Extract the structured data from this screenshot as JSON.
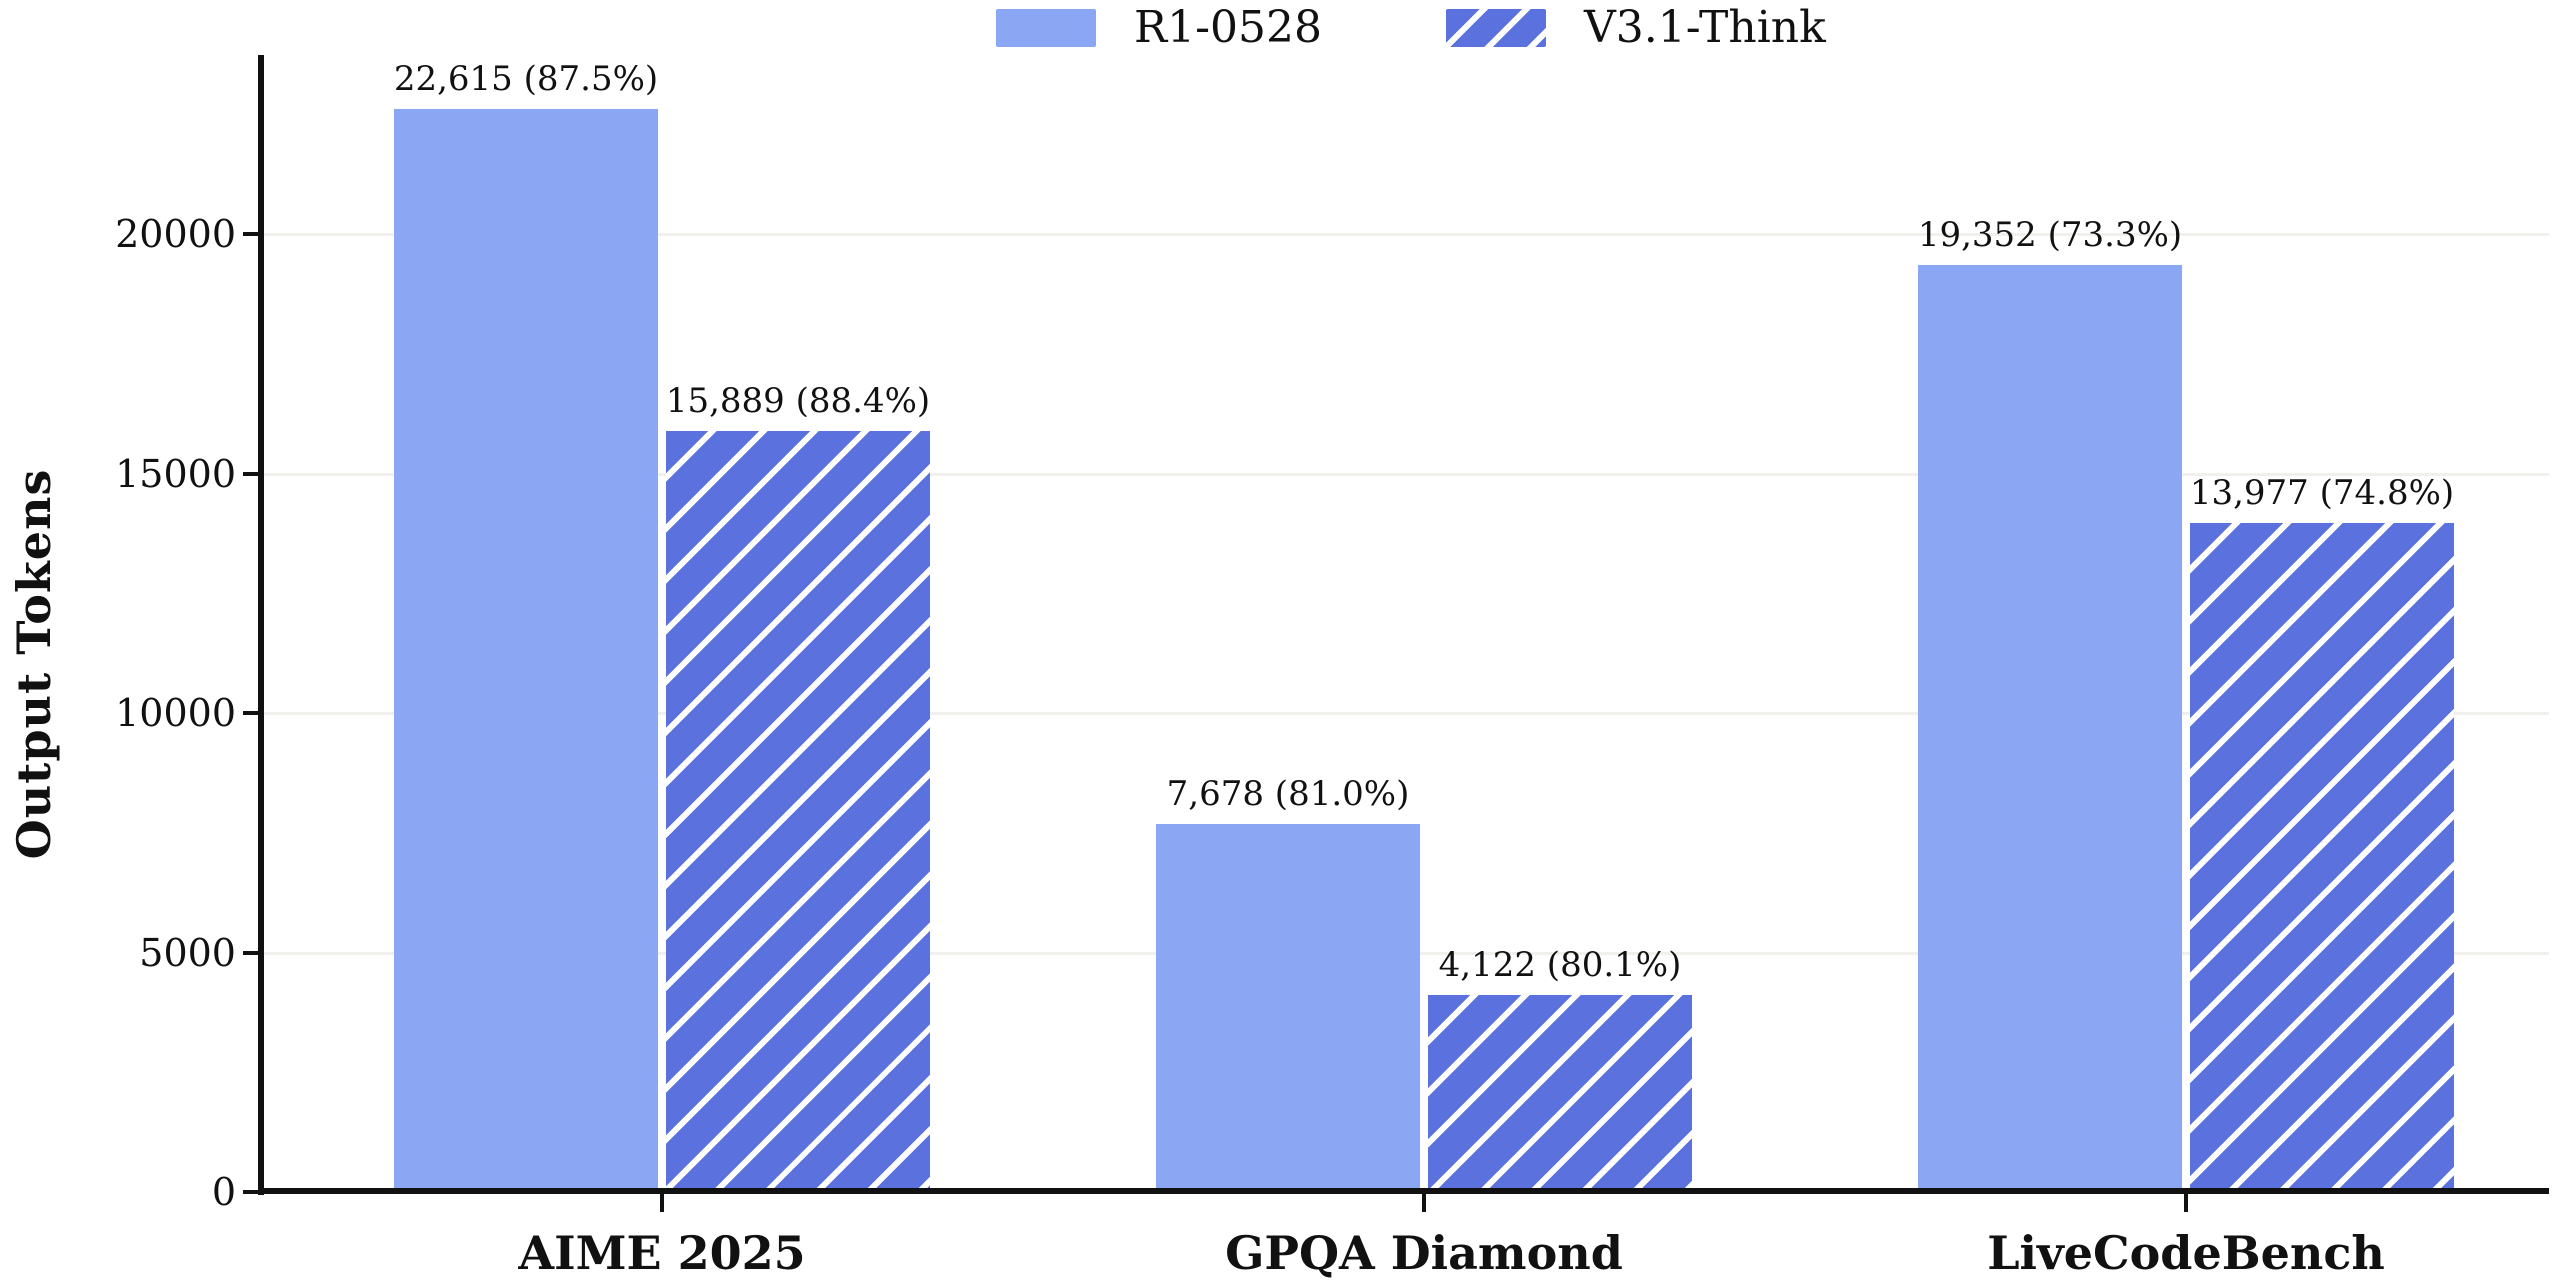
{
  "chart_data": {
    "type": "bar",
    "title": "",
    "categories": [
      "AIME 2025",
      "GPQA Diamond",
      "LiveCodeBench"
    ],
    "series": [
      {
        "name": "R1-0528",
        "pattern": "solid",
        "color": "#8BA7F3",
        "values": [
          22615,
          7678,
          19352
        ],
        "data_labels": [
          "22,615 (87.5%)",
          "7,678 (81.0%)",
          "19,352 (73.3%)"
        ]
      },
      {
        "name": "V3.1-Think",
        "pattern": "hatched",
        "color": "#5B72DE",
        "hatch_color": "#ffffff",
        "hatch_direction": "forward-slash",
        "values": [
          15889,
          4122,
          13977
        ],
        "data_labels": [
          "15,889 (88.4%)",
          "4,122 (80.1%)",
          "13,977 (74.8%)"
        ]
      }
    ],
    "xlabel": "",
    "ylabel": "Output Tokens",
    "yticks": [
      0,
      5000,
      10000,
      15000,
      20000
    ],
    "ylim": [
      0,
      23500
    ],
    "grid": "horizontal-faint",
    "gridline_color": "#f2f0ec",
    "legend_position": "top-center",
    "axis_color": "#111111",
    "text_color": "#111111",
    "background": "#ffffff"
  }
}
